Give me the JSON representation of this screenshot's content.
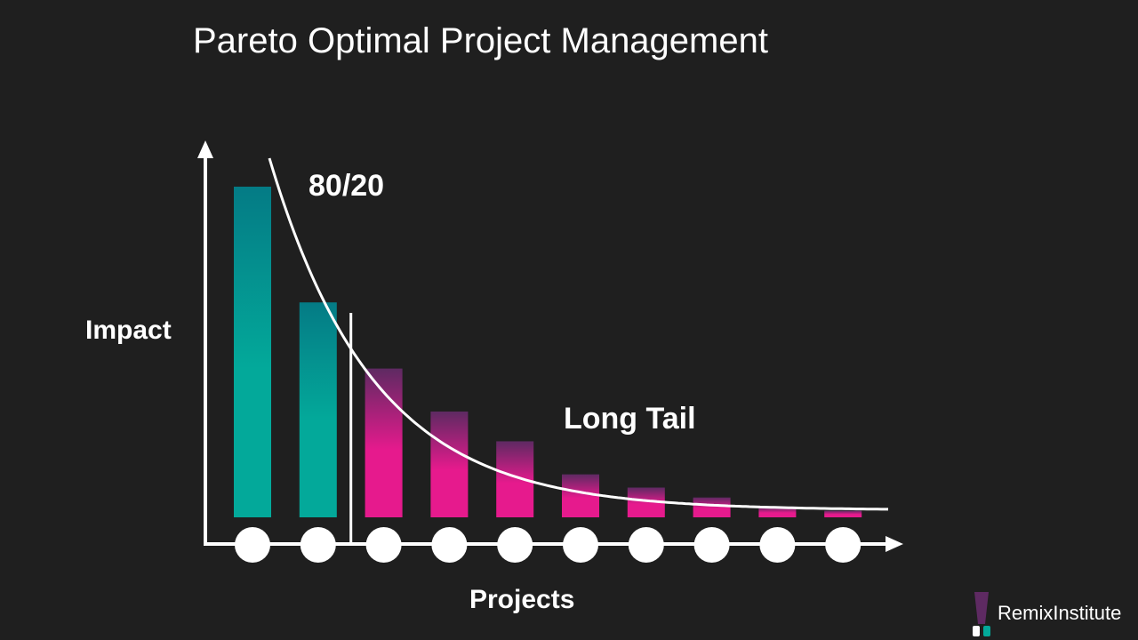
{
  "title": "Pareto Optimal Project Management",
  "logo": {
    "name": "remixinstitute-logo",
    "text": "RemixInstitute"
  },
  "colors": {
    "background": "#1f1f1f",
    "head_top": "#047b85",
    "head_bottom": "#03a99a",
    "tail_top": "#5e2a62",
    "tail_bottom": "#e61a8d",
    "axis": "#ffffff"
  },
  "chart_data": {
    "type": "bar",
    "xlabel": "Projects",
    "ylabel": "Impact",
    "categories": [
      "",
      "",
      "",
      "",
      "",
      "",
      "",
      "",
      "",
      ""
    ],
    "values": [
      100,
      65,
      45,
      32,
      23,
      13,
      9,
      6,
      3,
      2
    ],
    "ylim": [
      0,
      100
    ],
    "groups": [
      {
        "name": "80/20",
        "indices": [
          0,
          1
        ]
      },
      {
        "name": "Long Tail",
        "indices": [
          2,
          3,
          4,
          5,
          6,
          7,
          8,
          9
        ]
      }
    ],
    "annotations": [
      {
        "text": "80/20"
      },
      {
        "text": "Long Tail"
      }
    ],
    "curve": "exponential-decay",
    "grid": false,
    "legend": "none"
  }
}
